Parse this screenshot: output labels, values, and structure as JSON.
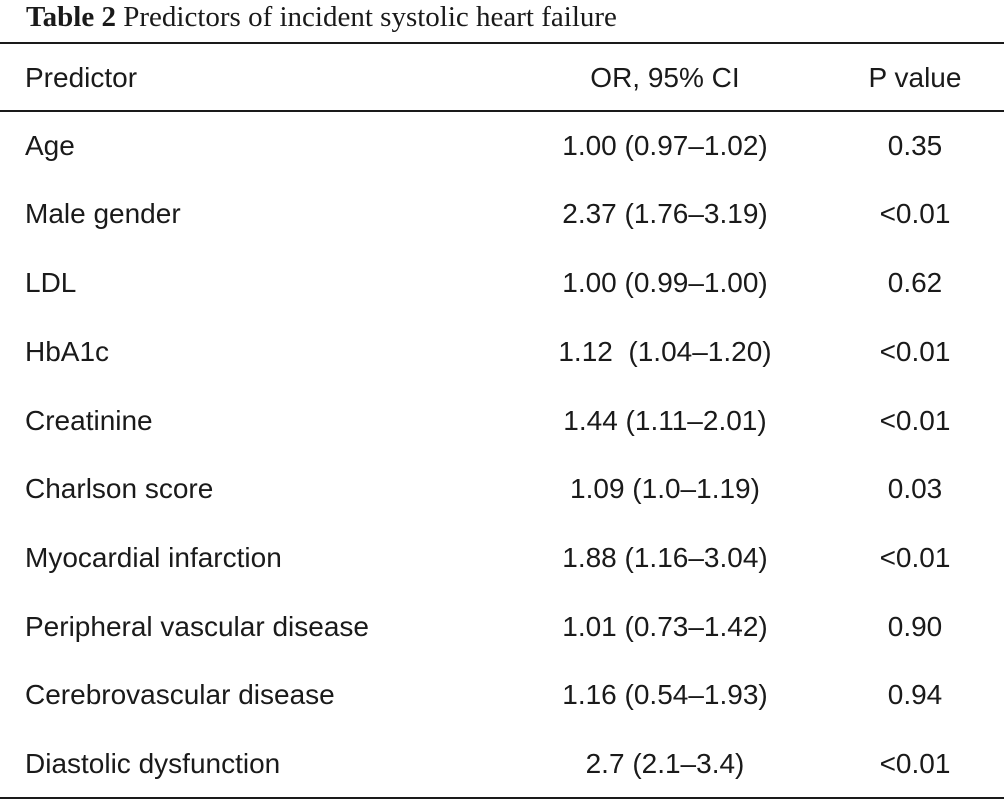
{
  "caption": {
    "label": "Table 2",
    "title": "Predictors of incident systolic heart failure"
  },
  "columns": {
    "predictor": "Predictor",
    "or_ci": "OR, 95% CI",
    "p_value": "P value"
  },
  "rows": [
    {
      "predictor": "Age",
      "or_ci": "1.00 (0.97–1.02)",
      "p_value": "0.35"
    },
    {
      "predictor": "Male gender",
      "or_ci": "2.37 (1.76–3.19)",
      "p_value": "<0.01"
    },
    {
      "predictor": "LDL",
      "or_ci": "1.00 (0.99–1.00)",
      "p_value": "0.62"
    },
    {
      "predictor": "HbA1c",
      "or_ci": "1.12  (1.04–1.20)",
      "p_value": "<0.01"
    },
    {
      "predictor": "Creatinine",
      "or_ci": "1.44 (1.11–2.01)",
      "p_value": "<0.01"
    },
    {
      "predictor": "Charlson score",
      "or_ci": "1.09 (1.0–1.19)",
      "p_value": "0.03"
    },
    {
      "predictor": "Myocardial infarction",
      "or_ci": "1.88 (1.16–3.04)",
      "p_value": "<0.01"
    },
    {
      "predictor": "Peripheral vascular disease",
      "or_ci": "1.01 (0.73–1.42)",
      "p_value": "0.90"
    },
    {
      "predictor": "Cerebrovascular disease",
      "or_ci": "1.16 (0.54–1.93)",
      "p_value": "0.94"
    },
    {
      "predictor": "Diastolic dysfunction",
      "or_ci": "2.7 (2.1–3.4)",
      "p_value": "<0.01"
    }
  ]
}
